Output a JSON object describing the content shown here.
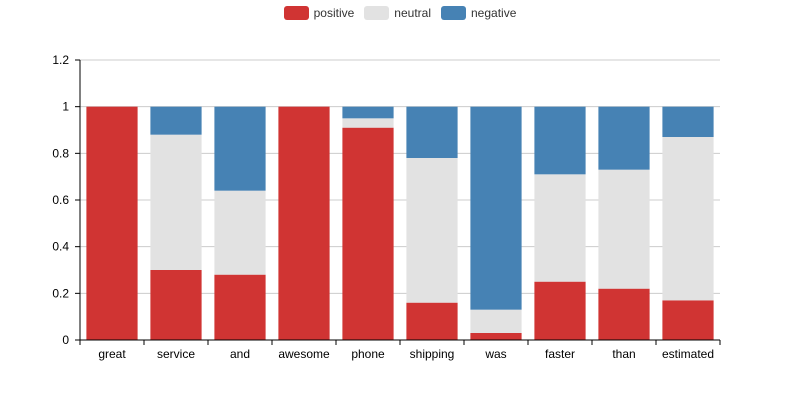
{
  "chart_data": {
    "type": "bar",
    "stacked": true,
    "categories": [
      "great",
      "service",
      "and",
      "awesome",
      "phone",
      "shipping",
      "was",
      "faster",
      "than",
      "estimated"
    ],
    "series": [
      {
        "name": "positive",
        "color": "#d03433",
        "values": [
          1.0,
          0.3,
          0.28,
          1.0,
          0.91,
          0.16,
          0.03,
          0.25,
          0.22,
          0.17
        ]
      },
      {
        "name": "neutral",
        "color": "#e2e2e2",
        "values": [
          0.0,
          0.58,
          0.36,
          0.0,
          0.04,
          0.62,
          0.1,
          0.46,
          0.51,
          0.7
        ]
      },
      {
        "name": "negative",
        "color": "#4682b4",
        "values": [
          0.0,
          0.12,
          0.36,
          0.0,
          0.05,
          0.22,
          0.87,
          0.29,
          0.27,
          0.13
        ]
      }
    ],
    "ylim": [
      0,
      1.2
    ],
    "yticks": [
      "0",
      "0.2",
      "0.4",
      "0.6",
      "0.8",
      "1",
      "1.2"
    ],
    "grid": true,
    "legend_position": "top-center"
  }
}
